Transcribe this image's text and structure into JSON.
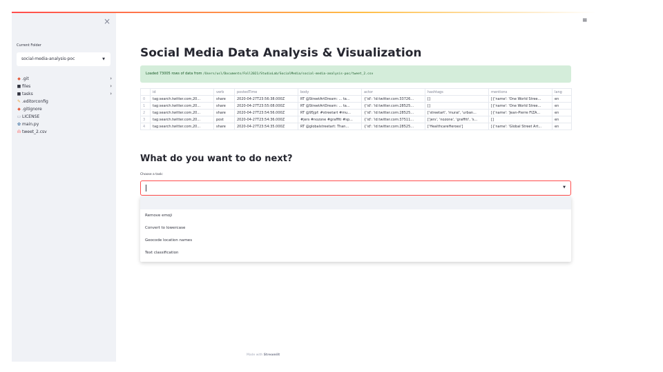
{
  "sidebar": {
    "close_icon": "×",
    "current_folder_label": "Current Folder",
    "folder_value": "social-media-analysis-poc",
    "items": [
      {
        "icon": "◆",
        "icon_color": "#e45c3c",
        "label": ".git",
        "arrow": "›"
      },
      {
        "icon": "■",
        "icon_color": "#31333f",
        "label": "files",
        "arrow": "›"
      },
      {
        "icon": "■",
        "icon_color": "#31333f",
        "label": "tasks",
        "arrow": "›"
      },
      {
        "icon": "✎",
        "icon_color": "#e8a33b",
        "label": ".editorconfig"
      },
      {
        "icon": "◆",
        "icon_color": "#e45c3c",
        "label": ".gitignore"
      },
      {
        "icon": "▭",
        "icon_color": "#9aa0ae",
        "label": "LICENSE"
      },
      {
        "icon": "✿",
        "icon_color": "#3b6fa0",
        "label": "main.py"
      },
      {
        "icon": "ılı",
        "icon_color": "#ff4b4b",
        "label": "tweet_2.csv"
      }
    ]
  },
  "main": {
    "menu_icon": "≡",
    "title": "Social Media Data Analysis & Visualization",
    "alert_text": "Loaded 73005 rows of data from",
    "alert_path": "/Users/usl/Documents/Fall2021/StudioLab/SocialMedia/social-media-analysis-poc/tweet_2.csv",
    "table": {
      "columns": [
        "",
        "id",
        "verb",
        "postedTime",
        "body",
        "actor",
        "hashtags",
        "mentions",
        "lang"
      ],
      "rows": [
        [
          "0",
          "tag:search.twitter.com,20...",
          "share",
          "2020-04-27T23:56:38.000Z",
          "RT @StreetArtDream: ... ta...",
          "{'id': 'id:twitter.com:33726...",
          "[]",
          "[{'name': 'One World Stree...",
          "en"
        ],
        [
          "1",
          "tag:search.twitter.com,20...",
          "share",
          "2020-04-27T23:55:08.000Z",
          "RT @StreetArtDream: ... ta...",
          "{'id': 'id:twitter.com:28525...",
          "[]",
          "[{'name': 'One World Stree...",
          "en"
        ],
        [
          "2",
          "tag:search.twitter.com,20...",
          "share",
          "2020-04-27T23:54:56.000Z",
          "RT @95jpf: #streetart #mu...",
          "{'id': 'id:twitter.com:28525...",
          "['streetart', 'mural', 'urban...",
          "[{'name': 'Jean-Pierre FIZA...",
          "en"
        ],
        [
          "3",
          "tag:search.twitter.com,20...",
          "post",
          "2020-04-27T23:54:36.000Z",
          "#jers #nozone #graffiti #sp...",
          "{'id': 'id:twitter.com:37511...",
          "['jers', 'nozone', 'graffiti', 's...",
          "[]",
          "en"
        ],
        [
          "4",
          "tag:search.twitter.com,20...",
          "share",
          "2020-04-27T23:54:35.000Z",
          "RT @globalstreetart: Than...",
          "{'id': 'id:twitter.com:28525...",
          "['HealthcareHeroes']",
          "[{'name': 'Global Street Art...",
          "en"
        ]
      ]
    },
    "next_heading": "What do you want to do next?",
    "task_label": "Choose a task:",
    "task_options": [
      "",
      "Remove emoji",
      "Convert to lowercase",
      "Geocode location names",
      "Text classification"
    ],
    "footer_prefix": "Made with",
    "footer_brand": "Streamlit"
  }
}
